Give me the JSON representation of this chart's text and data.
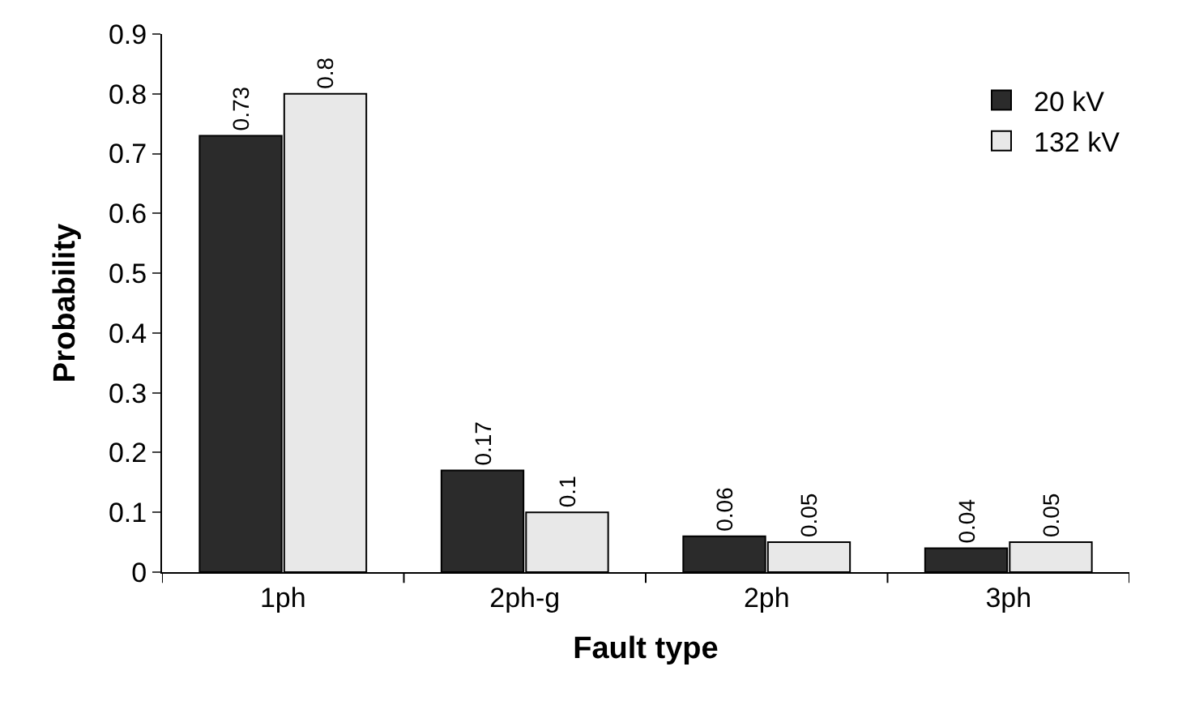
{
  "chart_data": {
    "type": "bar",
    "xlabel": "Fault type",
    "ylabel": "Probability",
    "categories": [
      "1ph",
      "2ph-g",
      "2ph",
      "3ph"
    ],
    "series": [
      {
        "name": "20 kV",
        "color": "#2b2b2b",
        "values": [
          0.73,
          0.17,
          0.06,
          0.04
        ]
      },
      {
        "name": "132 kV",
        "color": "#e8e8e8",
        "values": [
          0.8,
          0.1,
          0.05,
          0.05
        ]
      }
    ],
    "ylim": [
      0,
      0.9
    ],
    "yticks": [
      0,
      0.1,
      0.2,
      0.3,
      0.4,
      0.5,
      0.6,
      0.7,
      0.8,
      0.9
    ],
    "data_labels": true,
    "legend": "top right"
  }
}
